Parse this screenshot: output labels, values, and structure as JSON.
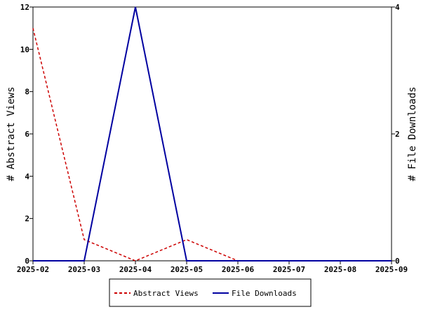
{
  "chart_data": {
    "type": "line",
    "x": [
      "2025-02",
      "2025-03",
      "2025-04",
      "2025-05",
      "2025-06",
      "2025-07",
      "2025-08",
      "2025-09"
    ],
    "left_axis": {
      "label": "# Abstract Views",
      "ylim": [
        0,
        12
      ],
      "ticks": [
        "0",
        "2",
        "4",
        "6",
        "8",
        "10",
        "12"
      ]
    },
    "right_axis": {
      "label": "# File Downloads",
      "ylim": [
        0,
        4
      ],
      "ticks": [
        "0",
        "2",
        "4"
      ]
    },
    "series": [
      {
        "name": "Abstract Views",
        "axis": "left",
        "style": "dashed",
        "color": "#cc0000",
        "x": [
          "2025-02",
          "2025-03",
          "2025-04",
          "2025-05",
          "2025-06"
        ],
        "values": [
          11,
          1,
          0,
          1,
          0
        ]
      },
      {
        "name": "File Downloads",
        "axis": "right",
        "style": "solid",
        "color": "#0000a0",
        "x": [
          "2025-02",
          "2025-03",
          "2025-04",
          "2025-05",
          "2025-06",
          "2025-07",
          "2025-08",
          "2025-09"
        ],
        "values": [
          0,
          0,
          4,
          0,
          0,
          0,
          0,
          0
        ]
      }
    ],
    "grid": false,
    "legend_position": "bottom-center"
  }
}
